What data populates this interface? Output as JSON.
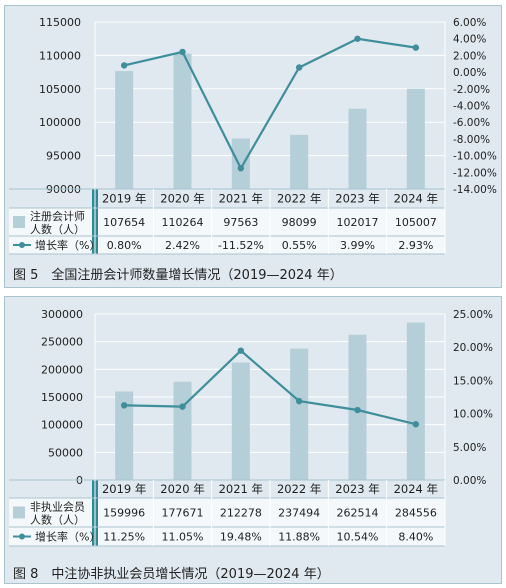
{
  "colors": {
    "bar": "#b4cfd8",
    "line": "#3e8f9b",
    "grid": "#ffffff",
    "teal_bar": "#2e8a97",
    "text": "#222222"
  },
  "figures": [
    {
      "caption": "图 5　全国注册会计师数量增长情况（2019—2024 年）",
      "table": {
        "bar_label_line1": "注册会计师",
        "bar_label_line2": "人数（人）",
        "line_label": "增长率（%）"
      },
      "chart_data": {
        "type": "bar",
        "categories": [
          "2019 年",
          "2020 年",
          "2021 年",
          "2022 年",
          "2023 年",
          "2024 年"
        ],
        "series": [
          {
            "name": "注册会计师人数（人）",
            "type": "bar",
            "axis": "left",
            "values": [
              107654,
              110264,
              97563,
              98099,
              102017,
              105007
            ],
            "labels": [
              "107654",
              "110264",
              "97563",
              "98099",
              "102017",
              "105007"
            ]
          },
          {
            "name": "增长率（%）",
            "type": "line",
            "axis": "right",
            "values": [
              0.8,
              2.42,
              -11.52,
              0.55,
              3.99,
              2.93
            ],
            "labels": [
              "0.80%",
              "2.42%",
              "-11.52%",
              "0.55%",
              "3.99%",
              "2.93%"
            ]
          }
        ],
        "left_axis": {
          "ylim": [
            90000,
            115000
          ],
          "ticks": [
            90000,
            95000,
            100000,
            105000,
            110000,
            115000
          ],
          "tick_labels": [
            "90000",
            "95000",
            "100000",
            "105000",
            "110000",
            "115000"
          ]
        },
        "right_axis": {
          "ylim": [
            -14,
            6
          ],
          "ticks": [
            6,
            4,
            2,
            0,
            -2,
            -4,
            -6,
            -8,
            -10,
            -12,
            -14
          ],
          "tick_labels": [
            "6.00%",
            "4.00%",
            "2.00%",
            "0.00%",
            "-2.00%",
            "-4.00%",
            "-6.00%",
            "-8.00%",
            "-10.00%",
            "-12.00%",
            "-14.00%"
          ]
        },
        "grid": true
      }
    },
    {
      "caption": "图 8　中注协非执业会员增长情况（2019—2024 年）",
      "table": {
        "bar_label_line1": "非执业会员",
        "bar_label_line2": "人数（人）",
        "line_label": "增长率（%）"
      },
      "chart_data": {
        "type": "bar",
        "categories": [
          "2019 年",
          "2020 年",
          "2021 年",
          "2022 年",
          "2023 年",
          "2024 年"
        ],
        "series": [
          {
            "name": "非执业会员人数（人）",
            "type": "bar",
            "axis": "left",
            "values": [
              159996,
              177671,
              212278,
              237494,
              262514,
              284556
            ],
            "labels": [
              "159996",
              "177671",
              "212278",
              "237494",
              "262514",
              "284556"
            ]
          },
          {
            "name": "增长率（%）",
            "type": "line",
            "axis": "right",
            "values": [
              11.25,
              11.05,
              19.48,
              11.88,
              10.54,
              8.4
            ],
            "labels": [
              "11.25%",
              "11.05%",
              "19.48%",
              "11.88%",
              "10.54%",
              "8.40%"
            ]
          }
        ],
        "left_axis": {
          "ylim": [
            0,
            300000
          ],
          "ticks": [
            0,
            50000,
            100000,
            150000,
            200000,
            250000,
            300000
          ],
          "tick_labels": [
            "0",
            "50000",
            "100000",
            "150000",
            "200000",
            "250000",
            "300000"
          ]
        },
        "right_axis": {
          "ylim": [
            0,
            25
          ],
          "ticks": [
            25,
            20,
            15,
            10,
            5,
            0
          ],
          "tick_labels": [
            "25.00%",
            "20.00%",
            "15.00%",
            "10.00%",
            "5.00%",
            "0.00%"
          ]
        },
        "grid": true
      }
    }
  ]
}
